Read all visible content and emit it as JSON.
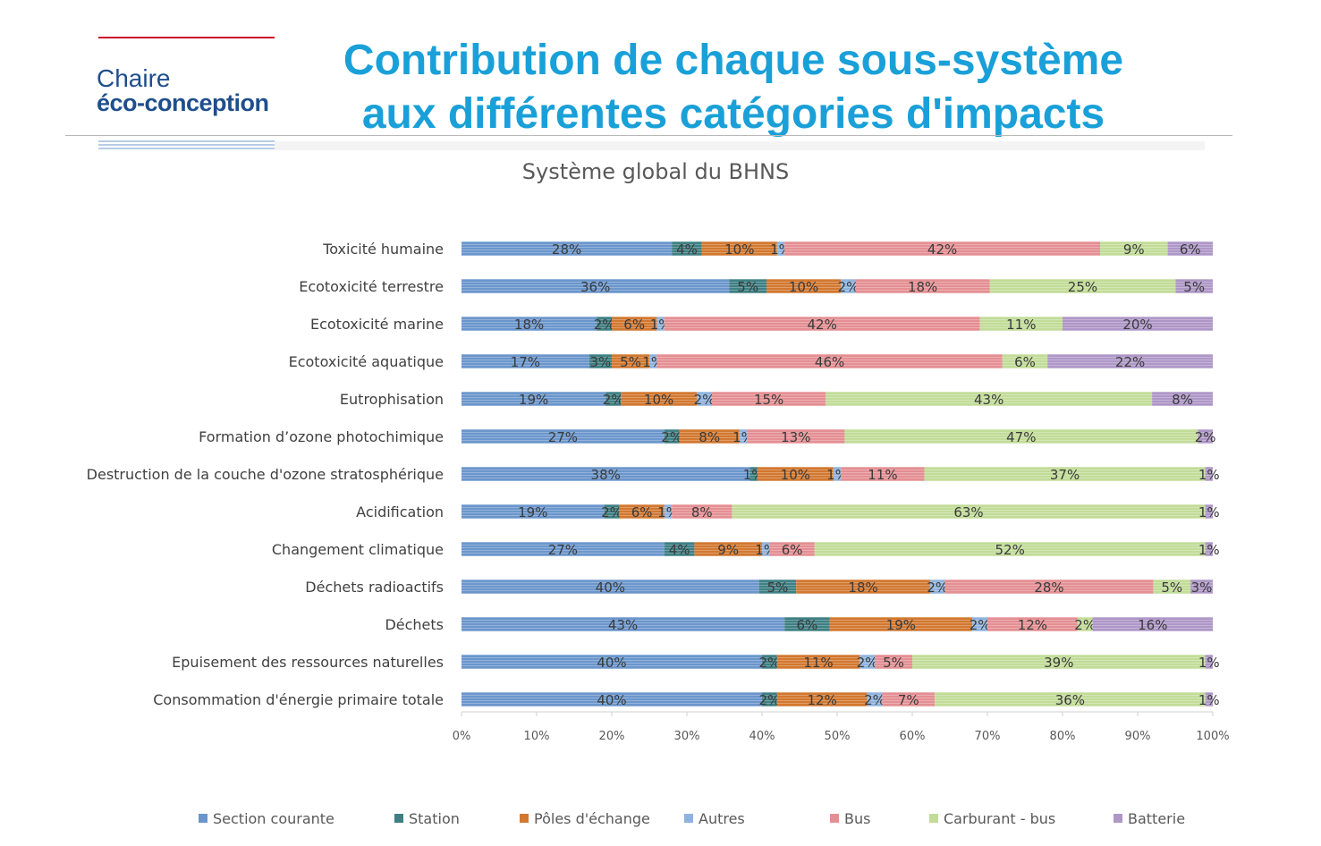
{
  "header": {
    "brand_line1": "Chaire",
    "brand_line2": "éco-conception",
    "title_line1": "Contribution de chaque sous-système",
    "title_line2": "aux différentes catégories d'impacts"
  },
  "chart_data": {
    "type": "bar",
    "orientation": "horizontal",
    "stacked": true,
    "normalized": true,
    "title": "Système global du BHNS",
    "categories": [
      "Toxicité humaine",
      "Ecotoxicité terrestre",
      "Ecotoxicité marine",
      "Ecotoxicité aquatique",
      "Eutrophisation",
      "Formation d’ozone photochimique",
      "Destruction de la couche d'ozone stratosphérique",
      "Acidification",
      "Changement climatique",
      "Déchets radioactifs",
      "Déchets",
      "Epuisement des ressources naturelles",
      "Consommation d'énergie primaire totale"
    ],
    "series": [
      {
        "name": "Section courante",
        "color": "#6b96cc",
        "values": [
          28,
          36,
          18,
          17,
          19,
          27,
          38,
          19,
          27,
          40,
          43,
          40,
          40
        ]
      },
      {
        "name": "Station",
        "color": "#3e8083",
        "values": [
          4,
          5,
          2,
          3,
          2,
          2,
          1,
          2,
          4,
          5,
          6,
          2,
          2
        ]
      },
      {
        "name": "Pôles d'échange",
        "color": "#d27830",
        "values": [
          10,
          10,
          6,
          5,
          10,
          8,
          10,
          6,
          9,
          18,
          19,
          11,
          12
        ]
      },
      {
        "name": "Autres",
        "color": "#8fb3de",
        "values": [
          1,
          2,
          1,
          1,
          2,
          1,
          1,
          1,
          1,
          2,
          2,
          2,
          2
        ]
      },
      {
        "name": "Bus",
        "color": "#e48f93",
        "values": [
          42,
          18,
          42,
          46,
          15,
          13,
          11,
          8,
          6,
          28,
          12,
          5,
          7
        ]
      },
      {
        "name": "Carburant - bus",
        "color": "#c2dc98",
        "values": [
          9,
          25,
          11,
          6,
          43,
          47,
          37,
          63,
          52,
          5,
          2,
          39,
          36
        ]
      },
      {
        "name": "Batterie",
        "color": "#ae97c7",
        "values": [
          6,
          5,
          20,
          22,
          8,
          2,
          1,
          1,
          1,
          3,
          16,
          1,
          1
        ]
      }
    ],
    "xlim": [
      0,
      100
    ],
    "xticks": [
      "0%",
      "10%",
      "20%",
      "30%",
      "40%",
      "50%",
      "60%",
      "70%",
      "80%",
      "90%",
      "100%"
    ],
    "grid": false,
    "legend_position": "bottom"
  }
}
